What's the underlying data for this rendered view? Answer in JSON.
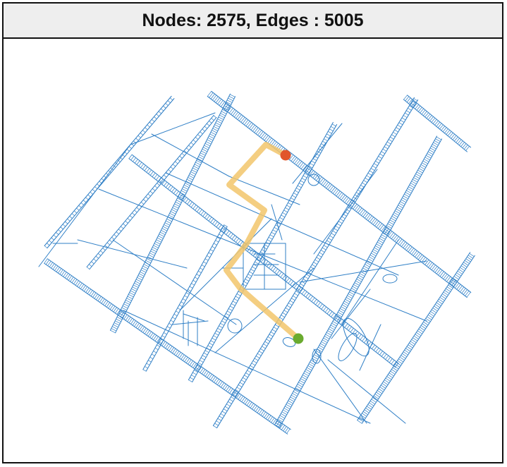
{
  "header": {
    "title": "Nodes: 2575, Edges : 5005"
  },
  "colors": {
    "edge": "#2f7fc6",
    "path_highlight": "#f2c56b",
    "start_node": "#e1552b",
    "end_node": "#6aab2f",
    "header_bg": "#eeeeee"
  },
  "graph": {
    "node_count": 2575,
    "edge_count": 5005
  }
}
